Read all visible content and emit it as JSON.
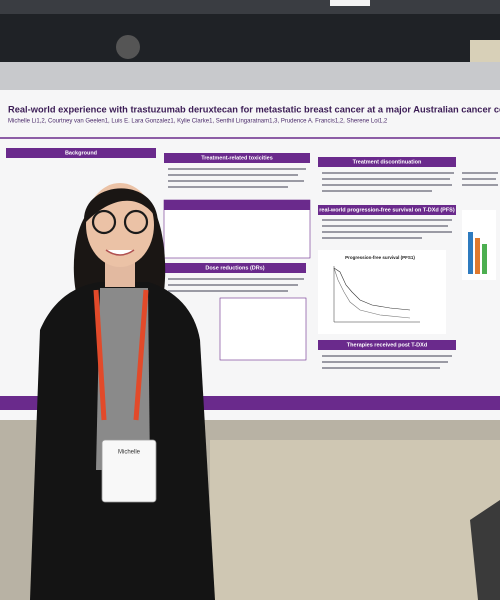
{
  "poster": {
    "title": "Real-world experience with trastuzumab deruxtecan for metastatic breast cancer at a major Australian cancer centre",
    "authors": "Michelle Li1,2, Courtney van Geelen1, Luis E. Lara Gonzalez1, Kylie Clarke1, Senthil Lingaratnam1,3, Prudence A. Francis1,2, Sherene Loi1,2",
    "sections": [
      "Background",
      "Treatment-related toxicities",
      "Treatment discontinuation",
      "Dose reductions (DRs)",
      "real-world progression-free survival on T-DXd (PFS)",
      "Therapies received post T-DXd"
    ],
    "chart_title": "Progression-free survival (PFS1)"
  },
  "badge": {
    "name": "Michelle"
  }
}
